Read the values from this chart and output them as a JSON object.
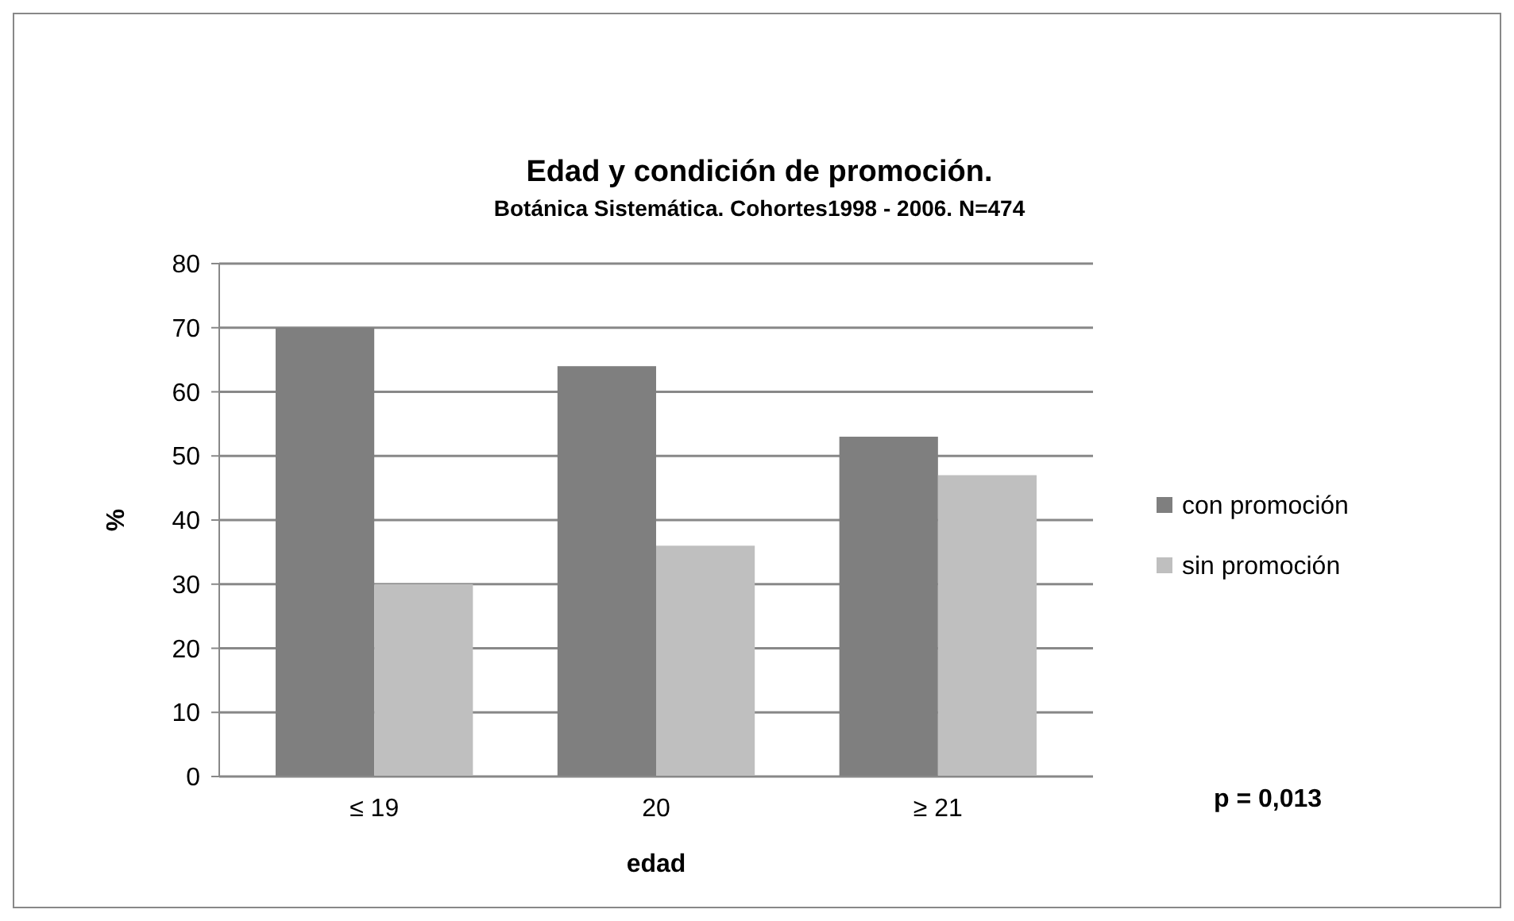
{
  "chart_data": {
    "type": "bar",
    "title": "Edad y condición de promoción.",
    "subtitle": "Botánica Sistemática. Cohortes1998 - 2006. N=474",
    "xlabel": "edad",
    "ylabel": "%",
    "categories": [
      "≤ 19",
      "20",
      "≥ 21"
    ],
    "series": [
      {
        "name": "con promoción",
        "color": "#7f7f7f",
        "values": [
          70,
          64,
          53
        ]
      },
      {
        "name": "sin promoción",
        "color": "#bfbfbf",
        "values": [
          30,
          36,
          47
        ]
      }
    ],
    "ylim": [
      0,
      80
    ],
    "yticks": [
      0,
      10,
      20,
      30,
      40,
      50,
      60,
      70,
      80
    ],
    "grid": "y",
    "legend": "right",
    "annotations": [
      "p = 0,013"
    ]
  }
}
